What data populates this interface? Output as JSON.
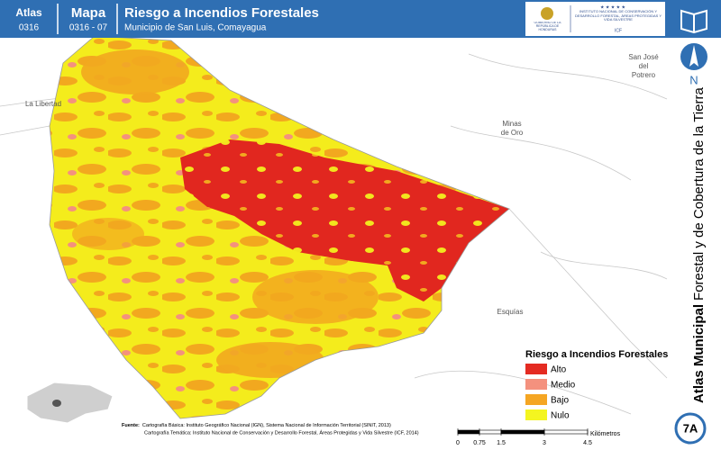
{
  "header": {
    "atlas_label": "Atlas",
    "atlas_code": "0316",
    "map_label": "Mapa",
    "map_code": "0316 - 07",
    "title": "Riesgo a Incendios Forestales",
    "subtitle": "Municipio de San Luis, Comayagua"
  },
  "logos": {
    "government": "GOBIERNO DE LA REPÚBLICA DE HONDURAS",
    "institute": "INSTITUTO NACIONAL DE CONSERVACIÓN Y DESARROLLO FORESTAL, ÁREAS PROTEGIDAS Y VIDA SILVESTRE",
    "acronym": "ICF"
  },
  "sidebar": {
    "north": "N",
    "series_bold": "Atlas Municipal",
    "series_rest": "Forestal y de Cobertura de la Tierra",
    "sheet": "7A"
  },
  "places": [
    "La Libertad",
    "Minas",
    "de Oro",
    "San José",
    "del",
    "Potrero",
    "Esquías"
  ],
  "legend": {
    "title": "Riesgo a Incendios Forestales",
    "items": [
      {
        "label": "Alto",
        "color": "#e42b22"
      },
      {
        "label": "Medio",
        "color": "#f4917e"
      },
      {
        "label": "Bajo",
        "color": "#f5a623"
      },
      {
        "label": "Nulo",
        "color": "#f4f520"
      }
    ]
  },
  "sources": {
    "label": "Fuente:",
    "lines": [
      "Cartografía Básica: Instituto Geográfico Nacional (IGN), Sistema Nacional de Información Territorial (SINIT, 2013)",
      "Cartografía Temática: Instituto Nacional de Conservación y Desarrollo Forestal, Áreas Protegidas y Vida Silvestre (ICF, 2014)"
    ]
  },
  "scale": {
    "unit": "Kilómetros",
    "ticks": [
      0,
      0.75,
      1.5,
      3,
      4.5
    ]
  }
}
